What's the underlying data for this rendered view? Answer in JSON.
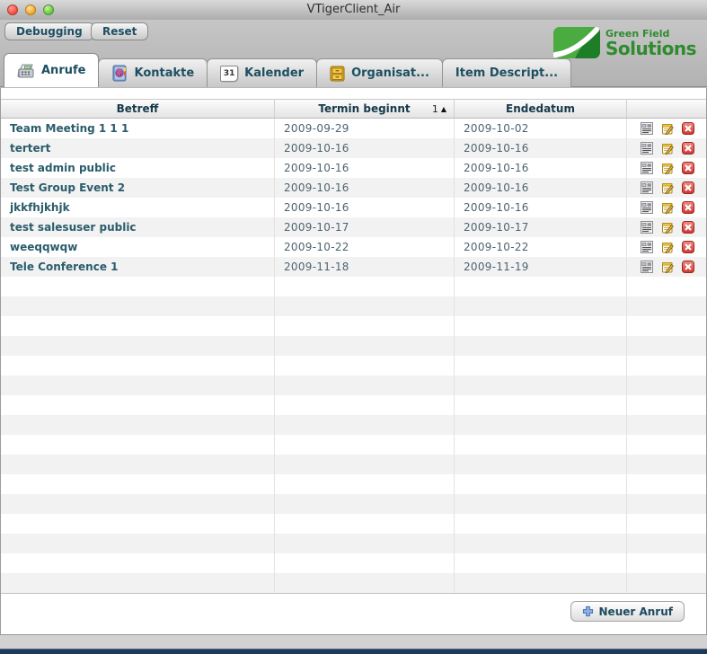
{
  "window": {
    "title": "VTigerClient_Air"
  },
  "toolbar": {
    "debugging_label": "Debugging",
    "reset_label": "Reset"
  },
  "logo": {
    "tagline": "Green Field",
    "name": "Solutions"
  },
  "tabs": [
    {
      "label": "Anrufe",
      "icon": "phone-icon",
      "active": true
    },
    {
      "label": "Kontakte",
      "icon": "addressbook-icon",
      "active": false
    },
    {
      "label": "Kalender",
      "icon": "calendar-icon",
      "badge": "31",
      "active": false
    },
    {
      "label": "Organisat...",
      "icon": "cabinet-icon",
      "active": false
    },
    {
      "label": "Item Descript...",
      "icon": "",
      "active": false
    }
  ],
  "table": {
    "headers": {
      "betreff": "Betreff",
      "termin": "Termin beginnt",
      "ende": "Endedatum"
    },
    "sort": {
      "column": "Termin beginnt",
      "order": "1",
      "direction_glyph": "▲"
    },
    "row_actions": [
      "details-icon",
      "edit-icon",
      "delete-icon"
    ],
    "rows": [
      {
        "betreff": "Team Meeting 1 1 1",
        "termin": "2009-09-29",
        "ende": "2009-10-02"
      },
      {
        "betreff": "tertert",
        "termin": "2009-10-16",
        "ende": "2009-10-16"
      },
      {
        "betreff": "test admin public",
        "termin": "2009-10-16",
        "ende": "2009-10-16"
      },
      {
        "betreff": "Test Group Event 2",
        "termin": "2009-10-16",
        "ende": "2009-10-16"
      },
      {
        "betreff": "jkkfhjkhjk",
        "termin": "2009-10-16",
        "ende": "2009-10-16"
      },
      {
        "betreff": "test salesuser public",
        "termin": "2009-10-17",
        "ende": "2009-10-17"
      },
      {
        "betreff": "weeqqwqw",
        "termin": "2009-10-22",
        "ende": "2009-10-22"
      },
      {
        "betreff": "Tele Conference 1",
        "termin": "2009-11-18",
        "ende": "2009-11-19"
      }
    ],
    "empty_row_count": 16
  },
  "footer": {
    "neuer_anruf_label": "Neuer Anruf"
  },
  "colors": {
    "teal_text": "#1d4f62",
    "header_text": "#16394a",
    "date_text": "#4e6470",
    "logo_green": "#2e8b2e",
    "delete_red": "#cf352e",
    "plus_blue": "#5b87c7",
    "navy_bottom": "#1c3a5e"
  }
}
